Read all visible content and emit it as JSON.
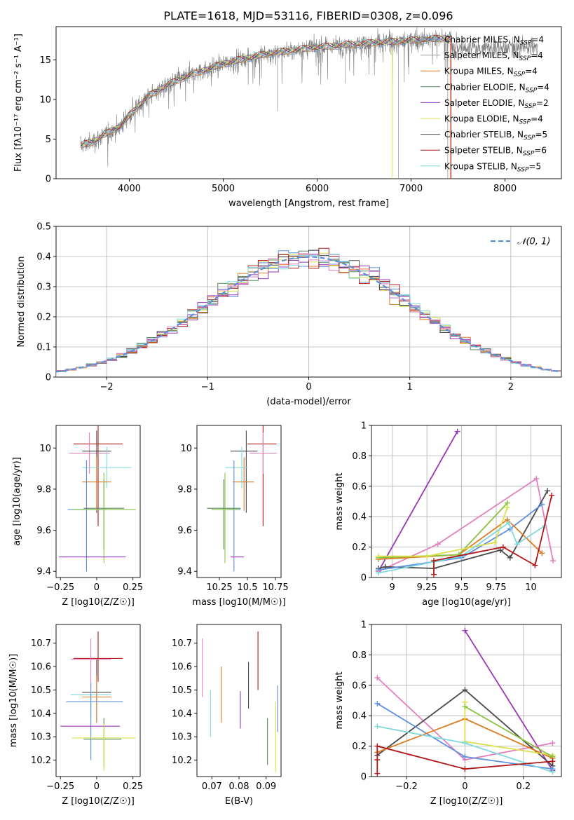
{
  "figure_title": "PLATE=1618, MJD=53116, FIBERID=0308, z=0.096",
  "colors": {
    "Chabrier MILES": "#5f8fe0",
    "Salpeter MILES": "#9a9a9a",
    "Kroupa MILES": "#e07b20",
    "Chabrier ELODIE": "#55885a",
    "Salpeter ELODIE": "#9a35b8",
    "Kroupa ELODIE": "#d9e04a",
    "Chabrier STELIB": "#4a4a4a",
    "Salpeter STELIB": "#b01818",
    "Kroupa STELIB": "#7fd8dc",
    "Kroupa STELIB pink": "#e37fbf",
    "Chabrier ELODIE green": "#8ac240",
    "data": "#808080",
    "gaussian": "#5a8fd8",
    "grid": "#b0b0b0"
  },
  "chart_data": [
    {
      "id": "spectrum",
      "type": "line",
      "title": "PLATE=1618, MJD=53116, FIBERID=0308, z=0.096",
      "xlabel": "wavelength [Angstrom, rest frame]",
      "ylabel": "Flux [fλ10⁻¹⁷ erg cm⁻² s⁻¹ A⁻¹]",
      "xlim": [
        3220,
        8600
      ],
      "ylim": [
        0,
        19.2
      ],
      "xticks": [
        4000,
        5000,
        6000,
        7000,
        8000
      ],
      "yticks": [
        0,
        5,
        10,
        15
      ],
      "grid": false,
      "legend_position": "top-right",
      "continuum": {
        "x": [
          3480,
          3600,
          3700,
          3800,
          3900,
          4000,
          4200,
          4400,
          4600,
          4800,
          5000,
          5200,
          5400,
          5600,
          5800,
          6000,
          6400,
          6800,
          7200,
          7430
        ],
        "y": [
          4.2,
          4.6,
          5.3,
          6.0,
          6.6,
          8.0,
          10.4,
          11.8,
          12.9,
          13.7,
          14.5,
          15.1,
          15.6,
          16.0,
          16.3,
          16.6,
          17.0,
          17.3,
          17.6,
          17.8
        ]
      },
      "data_extent": [
        3480,
        8350
      ],
      "series": [
        {
          "name": "Chabrier MILES, N_SSP=4"
        },
        {
          "name": "Salpeter MILES, N_SSP=4"
        },
        {
          "name": "Kroupa MILES, N_SSP=4"
        },
        {
          "name": "Chabrier ELODIE, N_SSP=4"
        },
        {
          "name": "Salpeter ELODIE, N_SSP=2"
        },
        {
          "name": "Kroupa ELODIE, N_SSP=4"
        },
        {
          "name": "Chabrier STELIB, N_SSP=5"
        },
        {
          "name": "Salpeter STELIB, N_SSP=6"
        },
        {
          "name": "Kroupa STELIB, N_SSP=5"
        }
      ]
    },
    {
      "id": "residuals",
      "type": "line",
      "xlabel": "(data-model)/error",
      "ylabel": "Normed distribution",
      "xlim": [
        -2.5,
        2.5
      ],
      "ylim": [
        0,
        0.5
      ],
      "xticks": [
        -2,
        -1,
        0,
        1,
        2
      ],
      "yticks": [
        0.0,
        0.1,
        0.2,
        0.3,
        0.4,
        0.5
      ],
      "grid": true,
      "legend_position": "top-right",
      "legend_label": "𝒩(0, 1)",
      "bins": [
        -2.5,
        2.5,
        50
      ]
    },
    {
      "id": "age_vs_Z",
      "type": "scatter",
      "xlabel": "Z [log10(Z/Z☉)]",
      "ylabel": "age  [log10(age/yr)]",
      "xlim": [
        -0.28,
        0.3
      ],
      "ylim": [
        9.37,
        10.11
      ],
      "xticks": [
        -0.25,
        0.0,
        0.25
      ],
      "yticks": [
        9.4,
        9.6,
        9.8,
        10.0
      ],
      "points": [
        {
          "color": "#b01818",
          "x": 0.01,
          "y": 10.02,
          "xerr": [
            0.17,
            0.17
          ],
          "yerr": [
            0.4,
            0.09
          ]
        },
        {
          "color": "#e37fbf",
          "x": -0.05,
          "y": 9.975,
          "xerr": [
            0.14,
            0.14
          ],
          "yerr": [
            0.1,
            0.1
          ]
        },
        {
          "color": "#4a4a4a",
          "x": 0.0,
          "y": 9.985,
          "xerr": [
            0.1,
            0.1
          ],
          "yerr": [
            0.3,
            0.1
          ]
        },
        {
          "color": "#7fd8dc",
          "x": 0.07,
          "y": 9.905,
          "xerr": [
            0.17,
            0.17
          ],
          "yerr": [
            0.1,
            0.1
          ]
        },
        {
          "color": "#e07b20",
          "x": 0.0,
          "y": 9.835,
          "xerr": [
            0.1,
            0.1
          ],
          "yerr": [
            0.14,
            0.12
          ]
        },
        {
          "color": "#5f8fe0",
          "x": -0.07,
          "y": 9.7,
          "xerr": [
            0.13,
            0.14
          ],
          "yerr": [
            0.3,
            0.24
          ]
        },
        {
          "color": "#55885a",
          "x": 0.05,
          "y": 9.707,
          "xerr": [
            0.14,
            0.14
          ],
          "yerr": [
            0.2,
            0.14
          ]
        },
        {
          "color": "#8ac240",
          "x": 0.05,
          "y": 9.7,
          "xerr": [
            0.22,
            0.22
          ],
          "yerr": [
            0.26,
            0.18
          ]
        },
        {
          "color": "#9a35b8",
          "x": -0.03,
          "y": 9.47,
          "xerr": [
            0.23,
            0.23
          ],
          "yerr": [
            0.0,
            0.0
          ]
        }
      ]
    },
    {
      "id": "age_vs_mass",
      "type": "scatter",
      "xlabel": "mass [log10(M/M☉)]",
      "ylabel": "",
      "xlim": [
        10.05,
        10.8
      ],
      "ylim": [
        9.37,
        10.11
      ],
      "xticks": [
        10.25,
        10.5,
        10.75
      ],
      "yticks": [
        9.4,
        9.6,
        9.8,
        10.0
      ],
      "points": [
        {
          "color": "#b01818",
          "x": 10.64,
          "y": 10.02,
          "xerr": [
            0.14,
            0.12
          ],
          "yerr": [
            0.4,
            0.09
          ]
        },
        {
          "color": "#e37fbf",
          "x": 10.64,
          "y": 9.975,
          "xerr": [
            0.12,
            0.12
          ],
          "yerr": [
            0.1,
            0.1
          ]
        },
        {
          "color": "#4a4a4a",
          "x": 10.49,
          "y": 9.985,
          "xerr": [
            0.14,
            0.1
          ],
          "yerr": [
            0.3,
            0.1
          ]
        },
        {
          "color": "#7fd8dc",
          "x": 10.45,
          "y": 9.905,
          "xerr": [
            0.15,
            0.05
          ],
          "yerr": [
            0.1,
            0.1
          ]
        },
        {
          "color": "#e07b20",
          "x": 10.47,
          "y": 9.835,
          "xerr": [
            0.1,
            0.09
          ],
          "yerr": [
            0.14,
            0.12
          ]
        },
        {
          "color": "#5f8fe0",
          "x": 10.38,
          "y": 9.7,
          "xerr": [
            0.06,
            0.06
          ],
          "yerr": [
            0.3,
            0.24
          ]
        },
        {
          "color": "#55885a",
          "x": 10.29,
          "y": 9.707,
          "xerr": [
            0.15,
            0.15
          ],
          "yerr": [
            0.2,
            0.14
          ]
        },
        {
          "color": "#8ac240",
          "x": 10.3,
          "y": 9.7,
          "xerr": [
            0.12,
            0.12
          ],
          "yerr": [
            0.26,
            0.18
          ]
        },
        {
          "color": "#9a35b8",
          "x": 10.35,
          "y": 9.47,
          "xerr": [
            0.0,
            0.12
          ],
          "yerr": [
            0.0,
            0.0
          ]
        }
      ]
    },
    {
      "id": "weight_vs_age",
      "type": "line",
      "xlabel": "age  [log10(age/yr)]",
      "ylabel": "mass weight",
      "xlim": [
        8.85,
        10.22
      ],
      "ylim": [
        0,
        1.0
      ],
      "xticks": [
        9.0,
        9.25,
        9.5,
        9.75,
        10.0
      ],
      "yticks": [
        0.0,
        0.2,
        0.4,
        0.6,
        0.8,
        1.0
      ],
      "grid": true,
      "series": [
        {
          "color": "#9a35b8",
          "x": [
            8.9,
            9.47
          ],
          "y": [
            0.04,
            0.96
          ]
        },
        {
          "color": "#e37fbf",
          "x": [
            8.9,
            9.33,
            10.04,
            10.16
          ],
          "y": [
            0.04,
            0.22,
            0.65,
            0.11
          ]
        },
        {
          "color": "#4a4a4a",
          "x": [
            8.9,
            8.95,
            9.3,
            9.78,
            9.85,
            10.12
          ],
          "y": [
            0.06,
            0.07,
            0.06,
            0.18,
            0.13,
            0.57
          ]
        },
        {
          "color": "#5f8fe0",
          "x": [
            8.9,
            9.5,
            9.85,
            10.08
          ],
          "y": [
            0.05,
            0.13,
            0.32,
            0.48
          ]
        },
        {
          "color": "#e07b20",
          "x": [
            8.9,
            9.48,
            9.83,
            10.08
          ],
          "y": [
            0.12,
            0.15,
            0.38,
            0.16
          ]
        },
        {
          "color": "#8ac240",
          "x": [
            8.9,
            9.48,
            9.83
          ],
          "y": [
            0.13,
            0.15,
            0.49
          ]
        },
        {
          "color": "#d9e04a",
          "x": [
            8.9,
            9.25,
            9.74,
            9.83
          ],
          "y": [
            0.14,
            0.14,
            0.23,
            0.46
          ]
        },
        {
          "color": "#7fd8dc",
          "x": [
            8.9,
            9.5,
            9.84,
            9.9,
            10.1
          ],
          "y": [
            0.03,
            0.14,
            0.36,
            0.22,
            0.34
          ]
        },
        {
          "color": "#b01818",
          "x": [
            9.3,
            9.3,
            9.8,
            10.03,
            10.15
          ],
          "y": [
            0.02,
            0.11,
            0.2,
            0.08,
            0.54
          ]
        }
      ]
    },
    {
      "id": "mass_vs_Z",
      "type": "scatter",
      "xlabel": "Z [log10(Z/Z☉)]",
      "ylabel": "mass [log10(M/M☉)]",
      "xlim": [
        -0.28,
        0.3
      ],
      "ylim": [
        10.13,
        10.78
      ],
      "xticks": [
        -0.25,
        0.0,
        0.25
      ],
      "yticks": [
        10.2,
        10.3,
        10.4,
        10.5,
        10.6,
        10.7
      ],
      "points": [
        {
          "color": "#b01818",
          "x": 0.01,
          "y": 10.635,
          "xerr": [
            0.17,
            0.17
          ],
          "yerr": [
            0.1,
            0.115
          ]
        },
        {
          "color": "#e37fbf",
          "x": -0.04,
          "y": 10.63,
          "xerr": [
            0.14,
            0.14
          ],
          "yerr": [
            0.12,
            0.09
          ]
        },
        {
          "color": "#4a4a4a",
          "x": 0.0,
          "y": 10.49,
          "xerr": [
            0.1,
            0.1
          ],
          "yerr": [
            0.13,
            0.14
          ]
        },
        {
          "color": "#7fd8dc",
          "x": -0.04,
          "y": 10.48,
          "xerr": [
            0.14,
            0.14
          ],
          "yerr": [
            0.1,
            0.0
          ]
        },
        {
          "color": "#e07b20",
          "x": 0.0,
          "y": 10.47,
          "xerr": [
            0.1,
            0.1
          ],
          "yerr": [
            0.11,
            0.09
          ]
        },
        {
          "color": "#5f8fe0",
          "x": -0.04,
          "y": 10.45,
          "xerr": [
            0.17,
            0.22
          ],
          "yerr": [
            0.25,
            0.08
          ]
        },
        {
          "color": "#9a35b8",
          "x": -0.04,
          "y": 10.345,
          "xerr": [
            0.21,
            0.2
          ],
          "yerr": [
            0.0,
            0.0
          ]
        },
        {
          "color": "#55885a",
          "x": 0.05,
          "y": 10.29,
          "xerr": [
            0.14,
            0.12
          ],
          "yerr": [
            0.12,
            0.09
          ]
        },
        {
          "color": "#d9e04a",
          "x": 0.05,
          "y": 10.295,
          "xerr": [
            0.22,
            0.22
          ],
          "yerr": [
            0.14,
            0.06
          ]
        }
      ]
    },
    {
      "id": "mass_vs_EBV",
      "type": "scatter",
      "xlabel": "E(B-V)",
      "ylabel": "",
      "xlim": [
        0.0645,
        0.0955
      ],
      "ylim": [
        10.13,
        10.78
      ],
      "xticks": [
        0.07,
        0.08,
        0.09
      ],
      "yticks": [
        10.2,
        10.3,
        10.4,
        10.5,
        10.6,
        10.7
      ],
      "points": [
        {
          "color": "#e37fbf",
          "x": 0.0665,
          "y": 10.6,
          "xerr": [
            0,
            0
          ],
          "yerr": [
            0.13,
            0.12
          ]
        },
        {
          "color": "#7fd8dc",
          "x": 0.0695,
          "y": 10.4,
          "xerr": [
            0,
            0
          ],
          "yerr": [
            0.1,
            0.1
          ]
        },
        {
          "color": "#e07b20",
          "x": 0.0735,
          "y": 10.48,
          "xerr": [
            0,
            0
          ],
          "yerr": [
            0.12,
            0.12
          ]
        },
        {
          "color": "#9a35b8",
          "x": 0.0805,
          "y": 10.415,
          "xerr": [
            0,
            0
          ],
          "yerr": [
            0.08,
            0.08
          ]
        },
        {
          "color": "#4a4a4a",
          "x": 0.0835,
          "y": 10.52,
          "xerr": [
            0,
            0
          ],
          "yerr": [
            0.1,
            0.1
          ]
        },
        {
          "color": "#b01818",
          "x": 0.087,
          "y": 10.625,
          "xerr": [
            0,
            0
          ],
          "yerr": [
            0.125,
            0.125
          ]
        },
        {
          "color": "#55885a",
          "x": 0.0905,
          "y": 10.28,
          "xerr": [
            0,
            0
          ],
          "yerr": [
            0.1,
            0.1
          ]
        },
        {
          "color": "#d9e04a",
          "x": 0.0935,
          "y": 10.3,
          "xerr": [
            0,
            0
          ],
          "yerr": [
            0.15,
            0.15
          ]
        },
        {
          "color": "#5f8fe0",
          "x": 0.0942,
          "y": 10.42,
          "xerr": [
            0,
            0
          ],
          "yerr": [
            0.1,
            0.1
          ]
        }
      ]
    },
    {
      "id": "weight_vs_Z",
      "type": "line",
      "xlabel": "Z [log10(Z/Z☉)]",
      "ylabel": "mass weight",
      "xlim": [
        -0.32,
        0.33
      ],
      "ylim": [
        0,
        1.0
      ],
      "xticks": [
        -0.2,
        0.0,
        0.2
      ],
      "yticks": [
        0.0,
        0.2,
        0.4,
        0.6,
        0.8,
        1.0
      ],
      "grid": true,
      "series": [
        {
          "color": "#9a35b8",
          "x": [
            0.0,
            0.3
          ],
          "y": [
            0.96,
            0.04
          ]
        },
        {
          "color": "#e37fbf",
          "x": [
            -0.3,
            0.0,
            0.3
          ],
          "y": [
            0.65,
            0.11,
            0.22
          ]
        },
        {
          "color": "#4a4a4a",
          "x": [
            -0.3,
            0.0,
            0.3,
            0.3
          ],
          "y": [
            0.14,
            0.57,
            0.07,
            0.13
          ]
        },
        {
          "color": "#5f8fe0",
          "x": [
            -0.3,
            0.0,
            0.3
          ],
          "y": [
            0.48,
            0.13,
            0.05
          ]
        },
        {
          "color": "#e07b20",
          "x": [
            -0.3,
            0.0,
            0.3
          ],
          "y": [
            0.16,
            0.38,
            0.12
          ]
        },
        {
          "color": "#d9e04a",
          "x": [
            0.0,
            0.0,
            0.3
          ],
          "y": [
            0.49,
            0.23,
            0.14
          ]
        },
        {
          "color": "#8ac240",
          "x": [
            0.0,
            0.3
          ],
          "y": [
            0.46,
            0.13
          ]
        },
        {
          "color": "#7fd8dc",
          "x": [
            -0.3,
            0.0,
            0.3
          ],
          "y": [
            0.33,
            0.22,
            0.03
          ]
        },
        {
          "color": "#b01818",
          "x": [
            -0.3,
            -0.3,
            -0.3,
            0.0,
            0.3
          ],
          "y": [
            0.02,
            0.11,
            0.2,
            0.05,
            0.1
          ]
        }
      ]
    }
  ]
}
